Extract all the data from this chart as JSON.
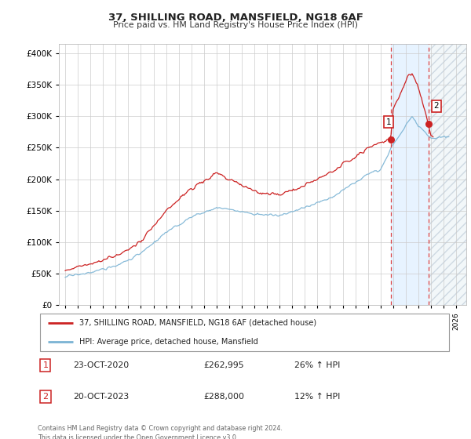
{
  "title": "37, SHILLING ROAD, MANSFIELD, NG18 6AF",
  "subtitle": "Price paid vs. HM Land Registry's House Price Index (HPI)",
  "ytick_values": [
    0,
    50000,
    100000,
    150000,
    200000,
    250000,
    300000,
    350000,
    400000
  ],
  "ylim": [
    0,
    415000
  ],
  "xlim_start": 1994.5,
  "xlim_end": 2026.8,
  "hpi_color": "#7ab3d4",
  "price_color": "#cc2222",
  "bg_color": "#ffffff",
  "grid_color": "#cccccc",
  "annotation1_date": "23-OCT-2020",
  "annotation1_price": "£262,995",
  "annotation1_pct": "26% ↑ HPI",
  "annotation2_date": "20-OCT-2023",
  "annotation2_price": "£288,000",
  "annotation2_pct": "12% ↑ HPI",
  "legend_label1": "37, SHILLING ROAD, MANSFIELD, NG18 6AF (detached house)",
  "legend_label2": "HPI: Average price, detached house, Mansfield",
  "footer": "Contains HM Land Registry data © Crown copyright and database right 2024.\nThis data is licensed under the Open Government Licence v3.0.",
  "marker1_x": 2020.81,
  "marker1_y": 262995,
  "marker2_x": 2023.81,
  "marker2_y": 288000,
  "vline1_x": 2020.81,
  "vline2_x": 2023.81,
  "shade_start": 2020.81,
  "shade_end": 2023.81,
  "hatch_start": 2023.81,
  "hatch_end": 2026.8
}
